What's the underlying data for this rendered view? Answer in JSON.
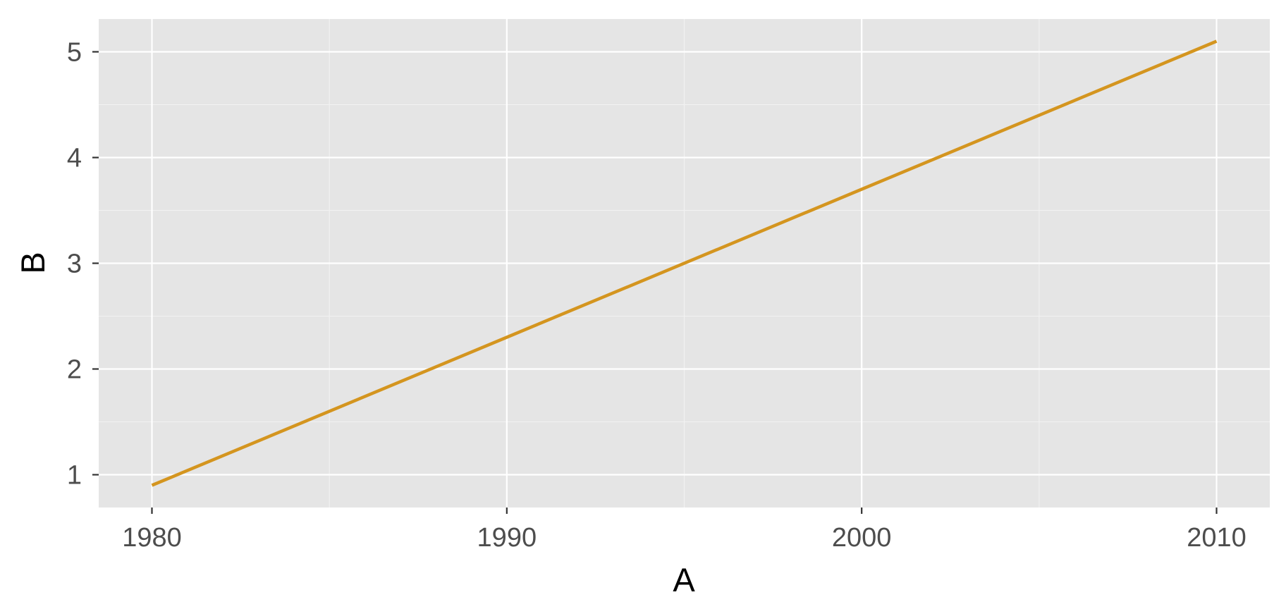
{
  "chart_data": {
    "type": "line",
    "title": "",
    "xlabel": "A",
    "ylabel": "B",
    "xlim": [
      1978.5,
      2011.5
    ],
    "ylim": [
      0.69,
      5.31
    ],
    "x_ticks": [
      1980,
      1990,
      2000,
      2010
    ],
    "x_minor_ticks": [
      1985,
      1995,
      2005
    ],
    "y_ticks": [
      1,
      2,
      3,
      4,
      5
    ],
    "y_minor_ticks": [
      1.5,
      2.5,
      3.5,
      4.5
    ],
    "grid": true,
    "legend": "none",
    "series": [
      {
        "color": "#D4951F",
        "x": [
          1980,
          1990,
          2000,
          2010
        ],
        "y": [
          0.9,
          2.3,
          3.7,
          5.1
        ]
      }
    ]
  },
  "colors": {
    "panel_background": "#E5E5E5",
    "gridline": "#FFFFFF",
    "tick_text": "#4D4D4D",
    "axis_title": "#000000"
  }
}
